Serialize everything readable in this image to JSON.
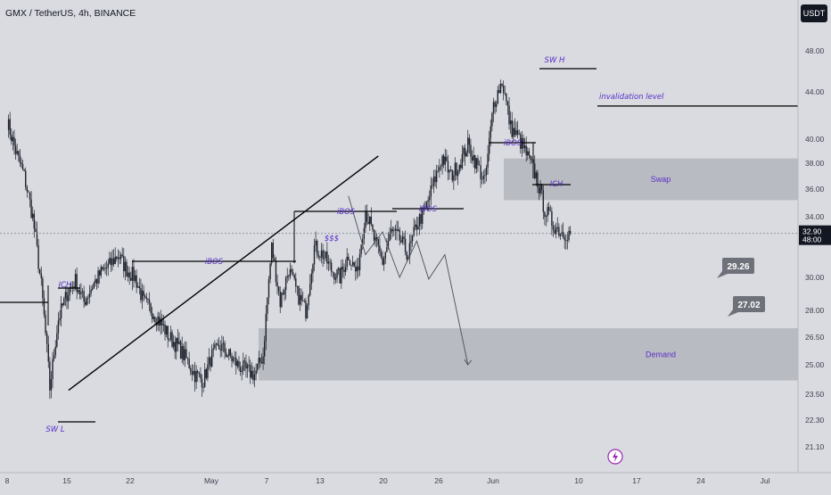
{
  "header": {
    "title": "GMX / TetherUS, 4h, BINANCE",
    "currency_button": "USDT"
  },
  "colors": {
    "background": "#d9dbe0",
    "zone_fill": "#9ea1aa",
    "candle": "#1e222d",
    "annotation_text": "#5b2fc9",
    "price_tag": "#6e7179"
  },
  "chart_data": {
    "type": "candlestick",
    "title": "GMX / TetherUS, 4h, BINANCE",
    "price_axis": {
      "ticks": [
        "48.00",
        "44.00",
        "40.00",
        "38.00",
        "36.00",
        "34.00",
        "30.00",
        "28.00",
        "26.50",
        "25.00",
        "23.50",
        "22.30",
        "21.10"
      ],
      "current_price": "32.90",
      "countdown": "48:00",
      "scale": "log"
    },
    "time_axis": {
      "ticks": [
        "8",
        "15",
        "22",
        "May",
        "7",
        "13",
        "20",
        "26",
        "Jun",
        "10",
        "17",
        "24",
        "Jul"
      ]
    },
    "series": [
      {
        "x": [
          "Apr 8",
          "Apr 9",
          "Apr 10",
          "Apr 11",
          "Apr 12",
          "Apr 13",
          "Apr 14",
          "Apr 15",
          "Apr 16",
          "Apr 17",
          "Apr 18",
          "Apr 19",
          "Apr 20",
          "Apr 21",
          "Apr 22",
          "Apr 23",
          "Apr 24",
          "Apr 25",
          "Apr 26",
          "Apr 27",
          "Apr 28",
          "Apr 29",
          "Apr 30",
          "May 1",
          "May 2",
          "May 3",
          "May 4",
          "May 5",
          "May 6",
          "May 7",
          "May 8",
          "May 9",
          "May 10",
          "May 11",
          "May 12",
          "May 13",
          "May 14",
          "May 15",
          "May 16",
          "May 17",
          "May 18",
          "May 19",
          "May 20",
          "May 21",
          "May 22",
          "May 23",
          "May 24",
          "May 25",
          "May 26",
          "May 27",
          "May 28",
          "May 29",
          "May 30",
          "May 31",
          "Jun 1",
          "Jun 2",
          "Jun 3",
          "Jun 4",
          "Jun 5",
          "Jun 6",
          "Jun 7",
          "Jun 8",
          "Jun 9",
          "Jun 10",
          "Jun 11",
          "Jun 12",
          "Jun 13"
        ],
        "close": [
          41.5,
          39.0,
          37.0,
          34.0,
          29.5,
          23.8,
          27.5,
          29.0,
          29.8,
          28.5,
          29.5,
          30.3,
          30.8,
          31.5,
          30.5,
          30.0,
          28.5,
          28.0,
          27.3,
          26.5,
          26.0,
          25.3,
          24.5,
          24.2,
          25.5,
          26.0,
          25.5,
          25.0,
          24.7,
          24.5,
          25.5,
          32.0,
          28.5,
          30.5,
          29.0,
          28.0,
          32.0,
          31.5,
          30.5,
          30.0,
          31.5,
          30.2,
          34.5,
          32.5,
          31.0,
          33.0,
          32.5,
          31.5,
          33.5,
          34.5,
          36.5,
          38.5,
          37.0,
          38.0,
          39.5,
          38.0,
          36.5,
          43.0,
          45.0,
          41.0,
          40.0,
          38.5,
          37.0,
          34.5,
          33.5,
          33.0,
          32.9
        ]
      }
    ],
    "projection": [
      [
        40,
        35.5
      ],
      [
        42,
        31.5
      ],
      [
        44,
        33
      ],
      [
        46,
        30
      ],
      [
        48,
        32.4
      ],
      [
        49.4,
        29.9
      ],
      [
        51.3,
        31.5
      ],
      [
        54,
        25
      ]
    ],
    "zones": [
      {
        "label": "Swap",
        "from": 35.2,
        "to": 38.4
      },
      {
        "label": "Demand",
        "from": 24.2,
        "to": 27.0
      }
    ],
    "trendline": [
      [
        7.2,
        23.7
      ],
      [
        43.5,
        38.6
      ]
    ],
    "levels": [
      {
        "label": "invalidation level",
        "value": 42.8
      }
    ],
    "annotations": [
      "SW H",
      "iBOS",
      "ICH",
      "iBOS",
      "$$$",
      "iBOS",
      "iBOS",
      "ICH",
      "SW L"
    ],
    "targets": [
      "29.26",
      "27.02"
    ]
  }
}
